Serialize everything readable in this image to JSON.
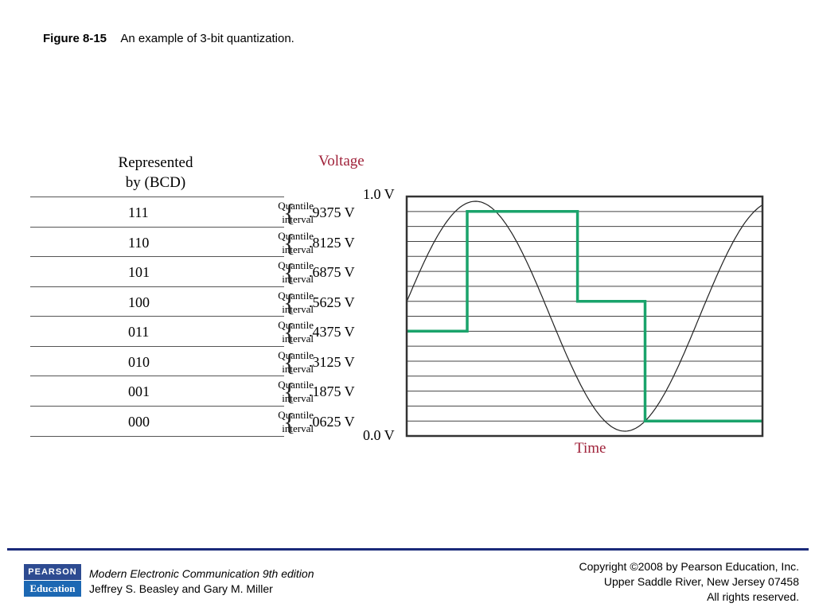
{
  "figure": {
    "label": "Figure 8-15",
    "caption": "An example of 3-bit quantization."
  },
  "headers": {
    "represented": "Represented",
    "represented_sub": "by (BCD)",
    "voltage": "Voltage",
    "time": "Time"
  },
  "axis": {
    "top_label": "1.0 V",
    "bottom_label": "0.0 V",
    "min": 0.0,
    "max": 1.0
  },
  "quantile_word": "Quantile",
  "interval_word": "interval",
  "levels": [
    {
      "code": "111",
      "voltage": ".9375 V"
    },
    {
      "code": "110",
      "voltage": ".8125 V"
    },
    {
      "code": "101",
      "voltage": ".6875 V"
    },
    {
      "code": "100",
      "voltage": ".5625 V"
    },
    {
      "code": "011",
      "voltage": ".4375 V"
    },
    {
      "code": "010",
      "voltage": ".3125 V"
    },
    {
      "code": "001",
      "voltage": ".1875 V"
    },
    {
      "code": "000",
      "voltage": ".0625 V"
    }
  ],
  "signal": {
    "analog_color": "#222222",
    "quantized_color": "#1aa36b",
    "quantized_steps": [
      {
        "t_start": 0.0,
        "t_end": 0.17,
        "level": 0.4375
      },
      {
        "t_start": 0.17,
        "t_end": 0.48,
        "level": 0.9375
      },
      {
        "t_start": 0.48,
        "t_end": 0.67,
        "level": 0.5625
      },
      {
        "t_start": 0.67,
        "t_end": 1.0,
        "level": 0.0625
      }
    ]
  },
  "footer": {
    "logo_top": "PEARSON",
    "logo_bottom": "Education",
    "book_title": "Modern Electronic Communication 9th edition",
    "authors": "Jeffrey S. Beasley and Gary M. Miller",
    "copyright_1": "Copyright ©2008 by Pearson Education, Inc.",
    "copyright_2": "Upper Saddle River, New Jersey 07458",
    "copyright_3": "All rights reserved."
  }
}
